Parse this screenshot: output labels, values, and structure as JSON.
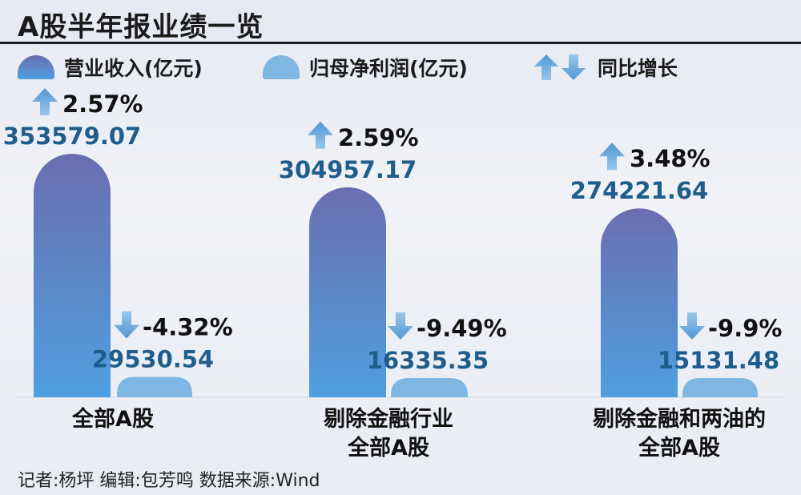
{
  "title": "A股半年报业绩一览",
  "legend": {
    "revenue": "营业收入(亿元)",
    "profit": "归母净利润(亿元)",
    "growth": "同比增长"
  },
  "source": "记者:杨坪   编辑:包芳鸣   数据来源:Wind",
  "colors": {
    "revenue_top": "#6a6eb0",
    "revenue_bottom": "#4f9fe0",
    "profit": "#7eb8e2",
    "value_text": "#1f5e8c",
    "arrow_top": "#4f97d4",
    "arrow_bottom": "#9bc7ea"
  },
  "chart_data": {
    "type": "bar",
    "categories": [
      "全部A股",
      "剔除金融行业全部A股",
      "剔除金融和两油的全部A股"
    ],
    "category_lines": [
      [
        "全部A股"
      ],
      [
        "剔除金融行业",
        "全部A股"
      ],
      [
        "剔除金融和两油的",
        "全部A股"
      ]
    ],
    "series": [
      {
        "name": "营业收入(亿元)",
        "values": [
          353579.07,
          304957.17,
          274221.64
        ],
        "labels": [
          "353579.07",
          "304957.17",
          "274221.64"
        ],
        "growth": [
          "2.57%",
          "2.59%",
          "3.48%"
        ],
        "direction": [
          "up",
          "up",
          "up"
        ]
      },
      {
        "name": "归母净利润(亿元)",
        "values": [
          29530.54,
          16335.35,
          15131.48
        ],
        "labels": [
          "29530.54",
          "16335.35",
          "15131.48"
        ],
        "growth": [
          "-4.32%",
          "-9.49%",
          "-9.9%"
        ],
        "direction": [
          "down",
          "down",
          "down"
        ]
      }
    ]
  }
}
